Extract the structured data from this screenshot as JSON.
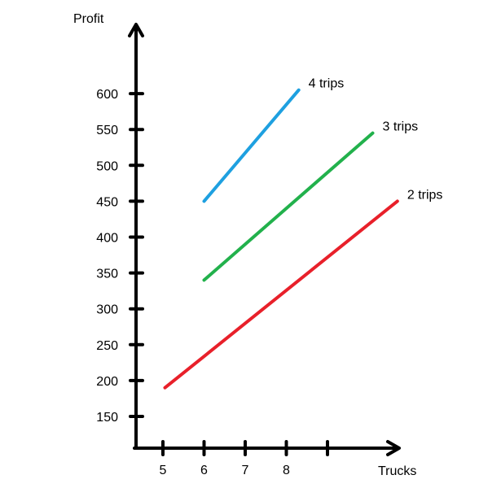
{
  "chart_data": {
    "type": "line",
    "title": "",
    "xlabel": "Trucks",
    "ylabel": "Profit",
    "x_ticks": [
      5,
      6,
      7,
      8,
      9
    ],
    "x_tick_labels": [
      "5",
      "6",
      "7",
      "8",
      ""
    ],
    "y_ticks": [
      150,
      200,
      250,
      300,
      350,
      400,
      450,
      500,
      550,
      600
    ],
    "y_tick_labels": [
      "150",
      "200",
      "250",
      "300",
      "350",
      "400",
      "450",
      "500",
      "550",
      "600"
    ],
    "grid": false,
    "legend": "inline-labels",
    "series": [
      {
        "name": "2 trips",
        "color": "#e8202a",
        "points": [
          [
            5.05,
            190
          ],
          [
            10.7,
            450
          ]
        ]
      },
      {
        "name": "3 trips",
        "color": "#22b14c",
        "points": [
          [
            6,
            340
          ],
          [
            10.1,
            545
          ]
        ]
      },
      {
        "name": "4 trips",
        "color": "#1ea0e0",
        "points": [
          [
            6,
            450
          ],
          [
            8.3,
            605
          ]
        ]
      }
    ]
  }
}
